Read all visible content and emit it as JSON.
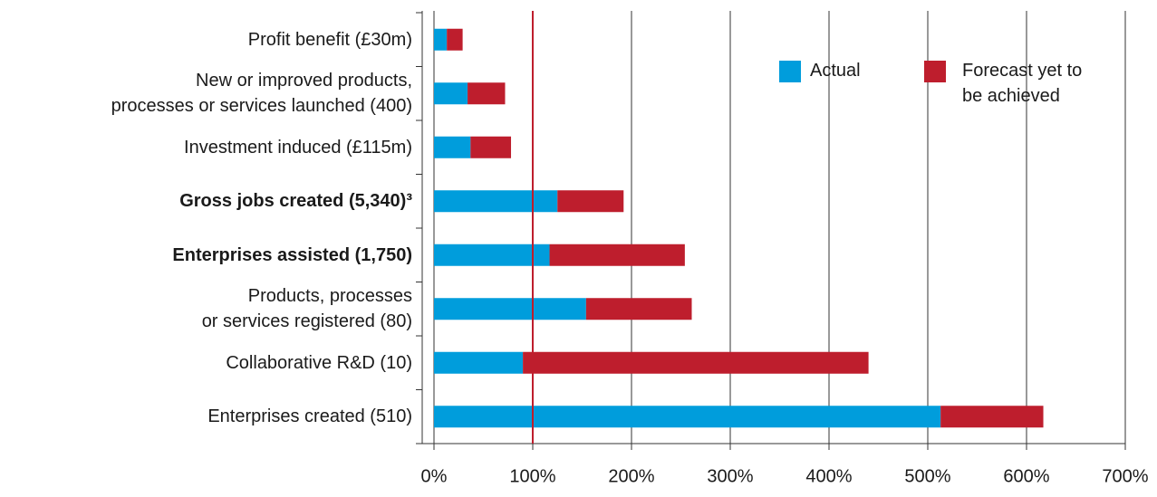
{
  "chart_data": {
    "type": "stacked-barh",
    "categories": [
      "Profit benefit (£30m)",
      "New or improved products,\nprocesses or services launched (400)",
      "Investment induced (£115m)",
      "Gross jobs created (5,340)³",
      "Enterprises assisted (1,750)",
      "Products, processes\nor services registered (80)",
      "Collaborative R&D (10)",
      "Enterprises created (510)"
    ],
    "bold": [
      false,
      false,
      false,
      true,
      true,
      false,
      false,
      false
    ],
    "series": [
      {
        "name": "Actual",
        "color": "#009ddc",
        "values": [
          13,
          34,
          37,
          125,
          117,
          154,
          90,
          513
        ]
      },
      {
        "name": "Forecast yet to\nbe achieved",
        "color": "#be1e2d",
        "values": [
          16,
          38,
          41,
          67,
          137,
          107,
          350,
          104
        ]
      }
    ],
    "xlim": [
      0,
      700
    ],
    "xticks": [
      {
        "value": 0,
        "label": "0%"
      },
      {
        "value": 100,
        "label": "100%"
      },
      {
        "value": 200,
        "label": "200%"
      },
      {
        "value": 300,
        "label": "300%"
      },
      {
        "value": 400,
        "label": "400%"
      },
      {
        "value": 500,
        "label": "500%"
      },
      {
        "value": 600,
        "label": "600%"
      },
      {
        "value": 700,
        "label": "700%"
      }
    ],
    "grid": true,
    "reference_line": {
      "value": 100,
      "color": "#be1e2d"
    },
    "legend": "upper right"
  }
}
